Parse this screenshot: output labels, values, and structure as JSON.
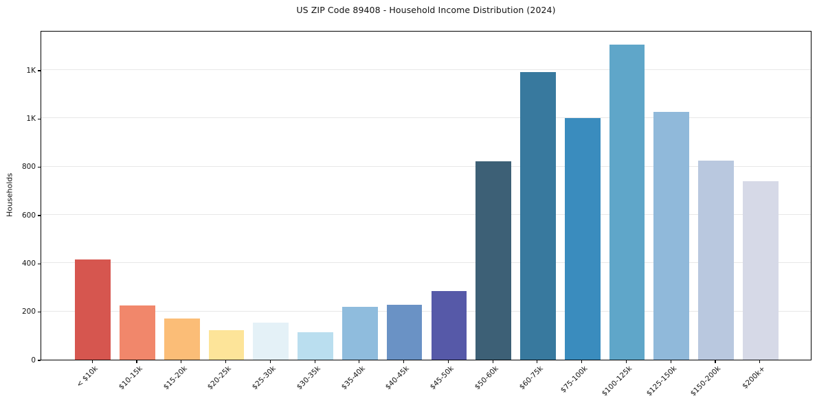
{
  "chart_data": {
    "type": "bar",
    "title": "US ZIP Code 89408 - Household Income Distribution (2024)",
    "xlabel": "",
    "ylabel": "Households",
    "categories": [
      "< $10k",
      "$10-15k",
      "$15-20k",
      "$20-25k",
      "$25-30k",
      "$30-35k",
      "$35-40k",
      "$40-45k",
      "$45-50k",
      "$50-60k",
      "$60-75k",
      "$75-100k",
      "$100-125k",
      "$125-150k",
      "$150-200k",
      "$200k+"
    ],
    "values": [
      415,
      225,
      170,
      122,
      154,
      115,
      220,
      227,
      284,
      822,
      1192,
      1000,
      1305,
      1028,
      824,
      740
    ],
    "bar_colors": [
      "#d6564f",
      "#f1876b",
      "#fbbd77",
      "#fde499",
      "#e4f1f7",
      "#badeef",
      "#8fbcdd",
      "#6a92c5",
      "#5659a8",
      "#3d6076",
      "#38799e",
      "#3a8cbe",
      "#5fa6c9",
      "#90b9da",
      "#b9c8df",
      "#d6d9e7"
    ],
    "ylim": [
      0,
      1365
    ],
    "yticks": [
      {
        "value": 0,
        "label": "0"
      },
      {
        "value": 200,
        "label": "200"
      },
      {
        "value": 400,
        "label": "400"
      },
      {
        "value": 600,
        "label": "600"
      },
      {
        "value": 800,
        "label": "800"
      },
      {
        "value": 1000,
        "label": "1K"
      },
      {
        "value": 1200,
        "label": "1K"
      }
    ],
    "grid": "horizontal-only",
    "gridline_color": "#e7e7e7",
    "legend": "none",
    "background_color": "#ffffff"
  }
}
